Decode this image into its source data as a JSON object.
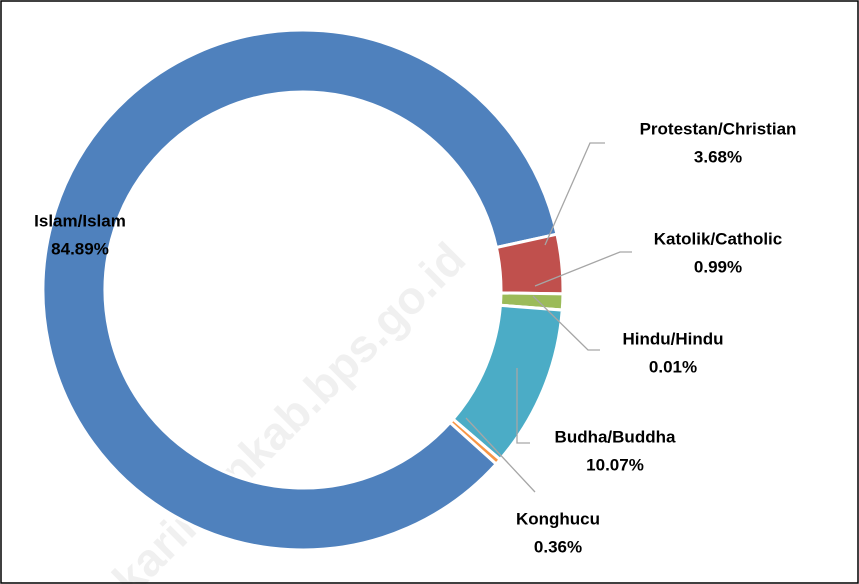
{
  "chart_data": {
    "type": "donut",
    "watermark": "karimunkab.bps.go.id",
    "categories": [
      "Islam/Islam",
      "Protestan/Christian",
      "Katolik/Catholic",
      "Hindu/Hindu",
      "Budha/Buddha",
      "Konghucu"
    ],
    "values": [
      84.89,
      3.68,
      0.99,
      0.01,
      10.07,
      0.36
    ],
    "value_labels": [
      "84.89%",
      "3.68%",
      "0.99%",
      "0.01%",
      "10.07%",
      "0.36%"
    ],
    "colors": [
      "#4f81bd",
      "#c0504d",
      "#9bbb59",
      "#8064a2",
      "#4bacc6",
      "#f79646"
    ]
  }
}
